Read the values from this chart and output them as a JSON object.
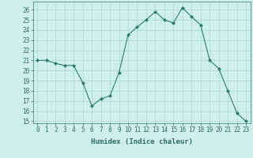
{
  "x": [
    0,
    1,
    2,
    3,
    4,
    5,
    6,
    7,
    8,
    9,
    10,
    11,
    12,
    13,
    14,
    15,
    16,
    17,
    18,
    19,
    20,
    21,
    22,
    23
  ],
  "y": [
    21.0,
    21.0,
    20.7,
    20.5,
    20.5,
    18.8,
    16.5,
    17.2,
    17.5,
    19.8,
    23.5,
    24.3,
    25.0,
    25.8,
    25.0,
    24.7,
    26.2,
    25.3,
    24.5,
    21.0,
    20.2,
    18.0,
    15.8,
    15.0
  ],
  "line_color": "#2d7d6e",
  "marker": "D",
  "marker_size": 2.0,
  "bg_color": "#cff0ea",
  "grid_color": "#a8d8d0",
  "xlabel": "Humidex (Indice chaleur)",
  "xlim": [
    -0.5,
    23.5
  ],
  "ylim": [
    14.8,
    26.8
  ],
  "yticks": [
    15,
    16,
    17,
    18,
    19,
    20,
    21,
    22,
    23,
    24,
    25,
    26
  ],
  "xticks": [
    0,
    1,
    2,
    3,
    4,
    5,
    6,
    7,
    8,
    9,
    10,
    11,
    12,
    13,
    14,
    15,
    16,
    17,
    18,
    19,
    20,
    21,
    22,
    23
  ],
  "label_color": "#2d6b62",
  "xlabel_fontsize": 6.5,
  "tick_fontsize": 5.5,
  "linewidth": 0.8,
  "spine_color": "#2d7d6e"
}
